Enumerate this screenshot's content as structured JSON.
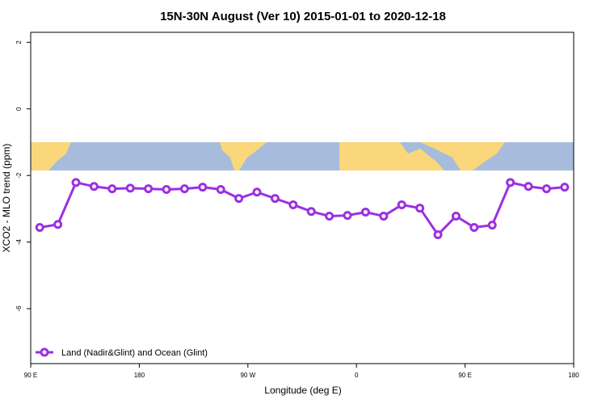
{
  "chart_data": {
    "type": "line",
    "title": "15N-30N August (Ver 10)   2015-01-01 to 2020-12-18",
    "x_label": "Longitude (deg E)",
    "y_label": "XCO2 - MLO trend (ppm)",
    "x": [
      97.5,
      112.5,
      127.5,
      142.5,
      157.5,
      172.5,
      187.5,
      202.5,
      217.5,
      232.5,
      247.5,
      262.5,
      277.5,
      292.5,
      307.5,
      322.5,
      337.5,
      352.5,
      367.5,
      382.5,
      397.5,
      412.5,
      427.5,
      442.5,
      457.5,
      472.5,
      487.5,
      502.5,
      517.5,
      532.5
    ],
    "series": [
      {
        "name": "Land (Nadir&Glint) and Ocean (Glint)",
        "color": "#9b30e0",
        "values": [
          -3.56,
          -3.47,
          -2.21,
          -2.33,
          -2.4,
          -2.38,
          -2.4,
          -2.42,
          -2.4,
          -2.35,
          -2.42,
          -2.69,
          -2.5,
          -2.69,
          -2.88,
          -3.08,
          -3.22,
          -3.2,
          -3.1,
          -3.22,
          -2.88,
          -2.98,
          -3.78,
          -3.22,
          -3.56,
          -3.49,
          -2.21,
          -2.33,
          -2.4,
          -2.35
        ]
      }
    ],
    "xlim": [
      90,
      540
    ],
    "xticks": [
      {
        "value": 90,
        "label": "90 E"
      },
      {
        "value": 180,
        "label": "180"
      },
      {
        "value": 270,
        "label": "90 W"
      },
      {
        "value": 360,
        "label": "0"
      },
      {
        "value": 450,
        "label": "90 E"
      },
      {
        "value": 540,
        "label": "180"
      }
    ],
    "ylim": [
      -7.65,
      2.3
    ],
    "yticks": [
      -6,
      -4,
      -2,
      0,
      2
    ],
    "legend": "bottom-left"
  }
}
